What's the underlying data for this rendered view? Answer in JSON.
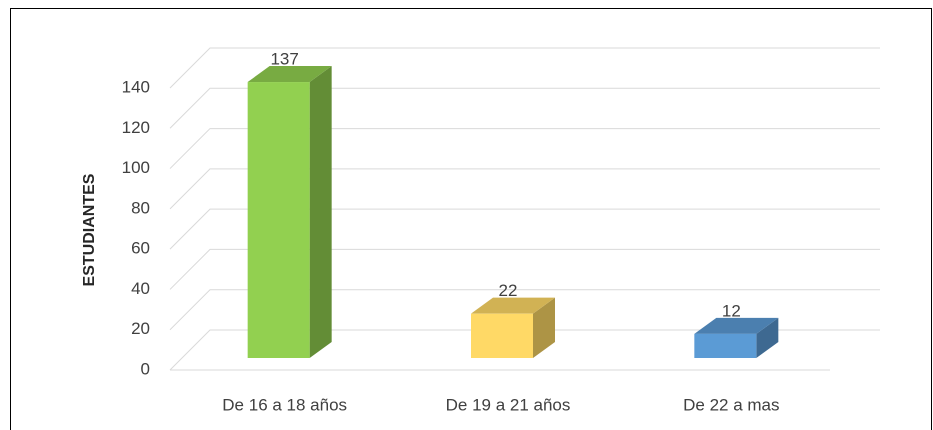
{
  "chart_data": {
    "type": "bar3d",
    "ylabel": "ESTUDIANTES",
    "categories": [
      "De 16 a 18 años",
      "De 19 a 21 años",
      "De 22  a mas"
    ],
    "values": [
      137,
      22,
      12
    ],
    "colors": [
      "#92d050",
      "#ffd966",
      "#5b9bd5"
    ],
    "ylim": [
      0,
      140
    ],
    "yticks": [
      0,
      20,
      40,
      60,
      80,
      100,
      120,
      140
    ],
    "grid": true
  }
}
